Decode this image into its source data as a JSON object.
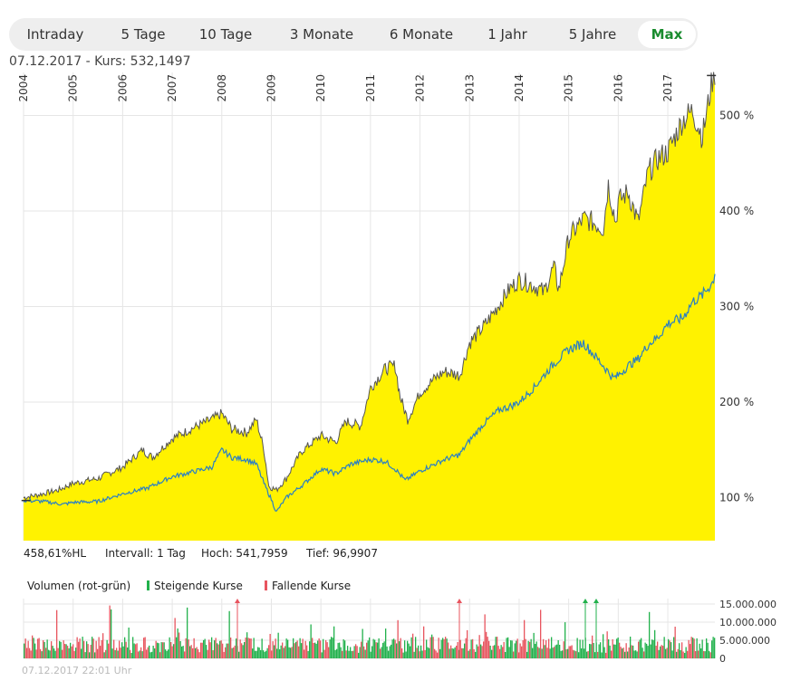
{
  "tabs": [
    {
      "label": "Intraday",
      "active": false
    },
    {
      "label": "5 Tage",
      "active": false
    },
    {
      "label": "10 Tage",
      "active": false
    },
    {
      "label": "3 Monate",
      "active": false
    },
    {
      "label": "6 Monate",
      "active": false
    },
    {
      "label": "1 Jahr",
      "active": false
    },
    {
      "label": "5 Jahre",
      "active": false
    },
    {
      "label": "Max",
      "active": true
    }
  ],
  "quote": {
    "text": "07.12.2017  -  Kurs: 532,1497"
  },
  "info": {
    "hl": "458,61%HL",
    "interval": "Intervall: 1 Tag",
    "high": "Hoch: 541,7959",
    "low": "Tief: 96,9907"
  },
  "legend": {
    "volume": "Volumen (rot-grün)",
    "rising": "Steigende Kurse",
    "falling": "Fallende Kurse"
  },
  "footer": "07.12.2017 22:01 Uhr",
  "colors": {
    "area": "#fff200",
    "line_main": "#555555",
    "line_bench": "#2a7fc4",
    "up": "#22b14c",
    "down": "#e8555f",
    "active_tab": "#1a8c2f"
  },
  "chart_data": [
    {
      "type": "area",
      "x_tick_labels": [
        "2004",
        "2005",
        "2006",
        "2007",
        "2008",
        "2009",
        "2010",
        "2011",
        "2012",
        "2013",
        "2014",
        "2015",
        "2016",
        "2017"
      ],
      "y_ticks": [
        100,
        200,
        300,
        400,
        500
      ],
      "y_tick_labels": [
        "100 %",
        "200 %",
        "300 %",
        "400 %",
        "500 %"
      ],
      "ylim": [
        55,
        545
      ],
      "xlim": [
        2004.0,
        2017.95
      ],
      "grid": true,
      "series": [
        {
          "style": "area",
          "points": [
            [
              2004.0,
              100
            ],
            [
              2004.3,
              103
            ],
            [
              2004.7,
              108
            ],
            [
              2005.0,
              115
            ],
            [
              2005.5,
              120
            ],
            [
              2006.0,
              132
            ],
            [
              2006.4,
              150
            ],
            [
              2006.6,
              142
            ],
            [
              2007.0,
              162
            ],
            [
              2007.5,
              175
            ],
            [
              2007.8,
              182
            ],
            [
              2008.0,
              188
            ],
            [
              2008.2,
              172
            ],
            [
              2008.5,
              168
            ],
            [
              2008.7,
              182
            ],
            [
              2008.85,
              150
            ],
            [
              2008.95,
              112
            ],
            [
              2009.1,
              108
            ],
            [
              2009.3,
              120
            ],
            [
              2009.6,
              148
            ],
            [
              2010.0,
              165
            ],
            [
              2010.3,
              158
            ],
            [
              2010.5,
              180
            ],
            [
              2010.8,
              175
            ],
            [
              2011.0,
              215
            ],
            [
              2011.3,
              235
            ],
            [
              2011.5,
              238
            ],
            [
              2011.6,
              205
            ],
            [
              2011.75,
              182
            ],
            [
              2012.0,
              210
            ],
            [
              2012.3,
              225
            ],
            [
              2012.5,
              232
            ],
            [
              2012.8,
              228
            ],
            [
              2013.0,
              262
            ],
            [
              2013.3,
              280
            ],
            [
              2013.5,
              295
            ],
            [
              2013.8,
              318
            ],
            [
              2014.0,
              328
            ],
            [
              2014.3,
              322
            ],
            [
              2014.5,
              315
            ],
            [
              2014.7,
              342
            ],
            [
              2014.8,
              318
            ],
            [
              2015.0,
              372
            ],
            [
              2015.3,
              392
            ],
            [
              2015.5,
              388
            ],
            [
              2015.7,
              382
            ],
            [
              2015.8,
              428
            ],
            [
              2015.95,
              388
            ],
            [
              2016.0,
              410
            ],
            [
              2016.2,
              420
            ],
            [
              2016.4,
              388
            ],
            [
              2016.6,
              440
            ],
            [
              2016.8,
              455
            ],
            [
              2017.0,
              462
            ],
            [
              2017.3,
              495
            ],
            [
              2017.5,
              505
            ],
            [
              2017.7,
              478
            ],
            [
              2017.9,
              538
            ],
            [
              2017.95,
              532
            ]
          ]
        },
        {
          "style": "line",
          "points": [
            [
              2004.0,
              97
            ],
            [
              2004.4,
              96
            ],
            [
              2004.8,
              93
            ],
            [
              2005.0,
              95
            ],
            [
              2005.5,
              96
            ],
            [
              2006.0,
              104
            ],
            [
              2006.5,
              110
            ],
            [
              2007.0,
              122
            ],
            [
              2007.5,
              128
            ],
            [
              2007.8,
              132
            ],
            [
              2008.0,
              150
            ],
            [
              2008.2,
              142
            ],
            [
              2008.5,
              140
            ],
            [
              2008.7,
              135
            ],
            [
              2008.85,
              115
            ],
            [
              2009.0,
              98
            ],
            [
              2009.1,
              85
            ],
            [
              2009.3,
              100
            ],
            [
              2009.6,
              112
            ],
            [
              2010.0,
              130
            ],
            [
              2010.3,
              125
            ],
            [
              2010.6,
              135
            ],
            [
              2011.0,
              140
            ],
            [
              2011.3,
              138
            ],
            [
              2011.5,
              130
            ],
            [
              2011.7,
              118
            ],
            [
              2012.0,
              128
            ],
            [
              2012.5,
              140
            ],
            [
              2012.8,
              145
            ],
            [
              2013.0,
              160
            ],
            [
              2013.3,
              178
            ],
            [
              2013.6,
              192
            ],
            [
              2013.8,
              195
            ],
            [
              2014.0,
              200
            ],
            [
              2014.3,
              215
            ],
            [
              2014.5,
              228
            ],
            [
              2014.7,
              240
            ],
            [
              2015.0,
              255
            ],
            [
              2015.3,
              262
            ],
            [
              2015.5,
              250
            ],
            [
              2015.7,
              238
            ],
            [
              2015.9,
              225
            ],
            [
              2016.0,
              228
            ],
            [
              2016.2,
              238
            ],
            [
              2016.4,
              245
            ],
            [
              2016.6,
              260
            ],
            [
              2016.8,
              268
            ],
            [
              2017.0,
              282
            ],
            [
              2017.3,
              288
            ],
            [
              2017.5,
              305
            ],
            [
              2017.7,
              312
            ],
            [
              2017.9,
              325
            ],
            [
              2017.95,
              334
            ]
          ]
        }
      ]
    },
    {
      "type": "bar",
      "series_labels": [
        "Steigende Kurse",
        "Fallende Kurse"
      ],
      "y_ticks": [
        0,
        5000000,
        10000000,
        15000000
      ],
      "y_tick_labels": [
        "0",
        "5.000.000",
        "10.000.000",
        "15.000.000"
      ],
      "ylim": [
        0,
        16500000
      ]
    }
  ]
}
